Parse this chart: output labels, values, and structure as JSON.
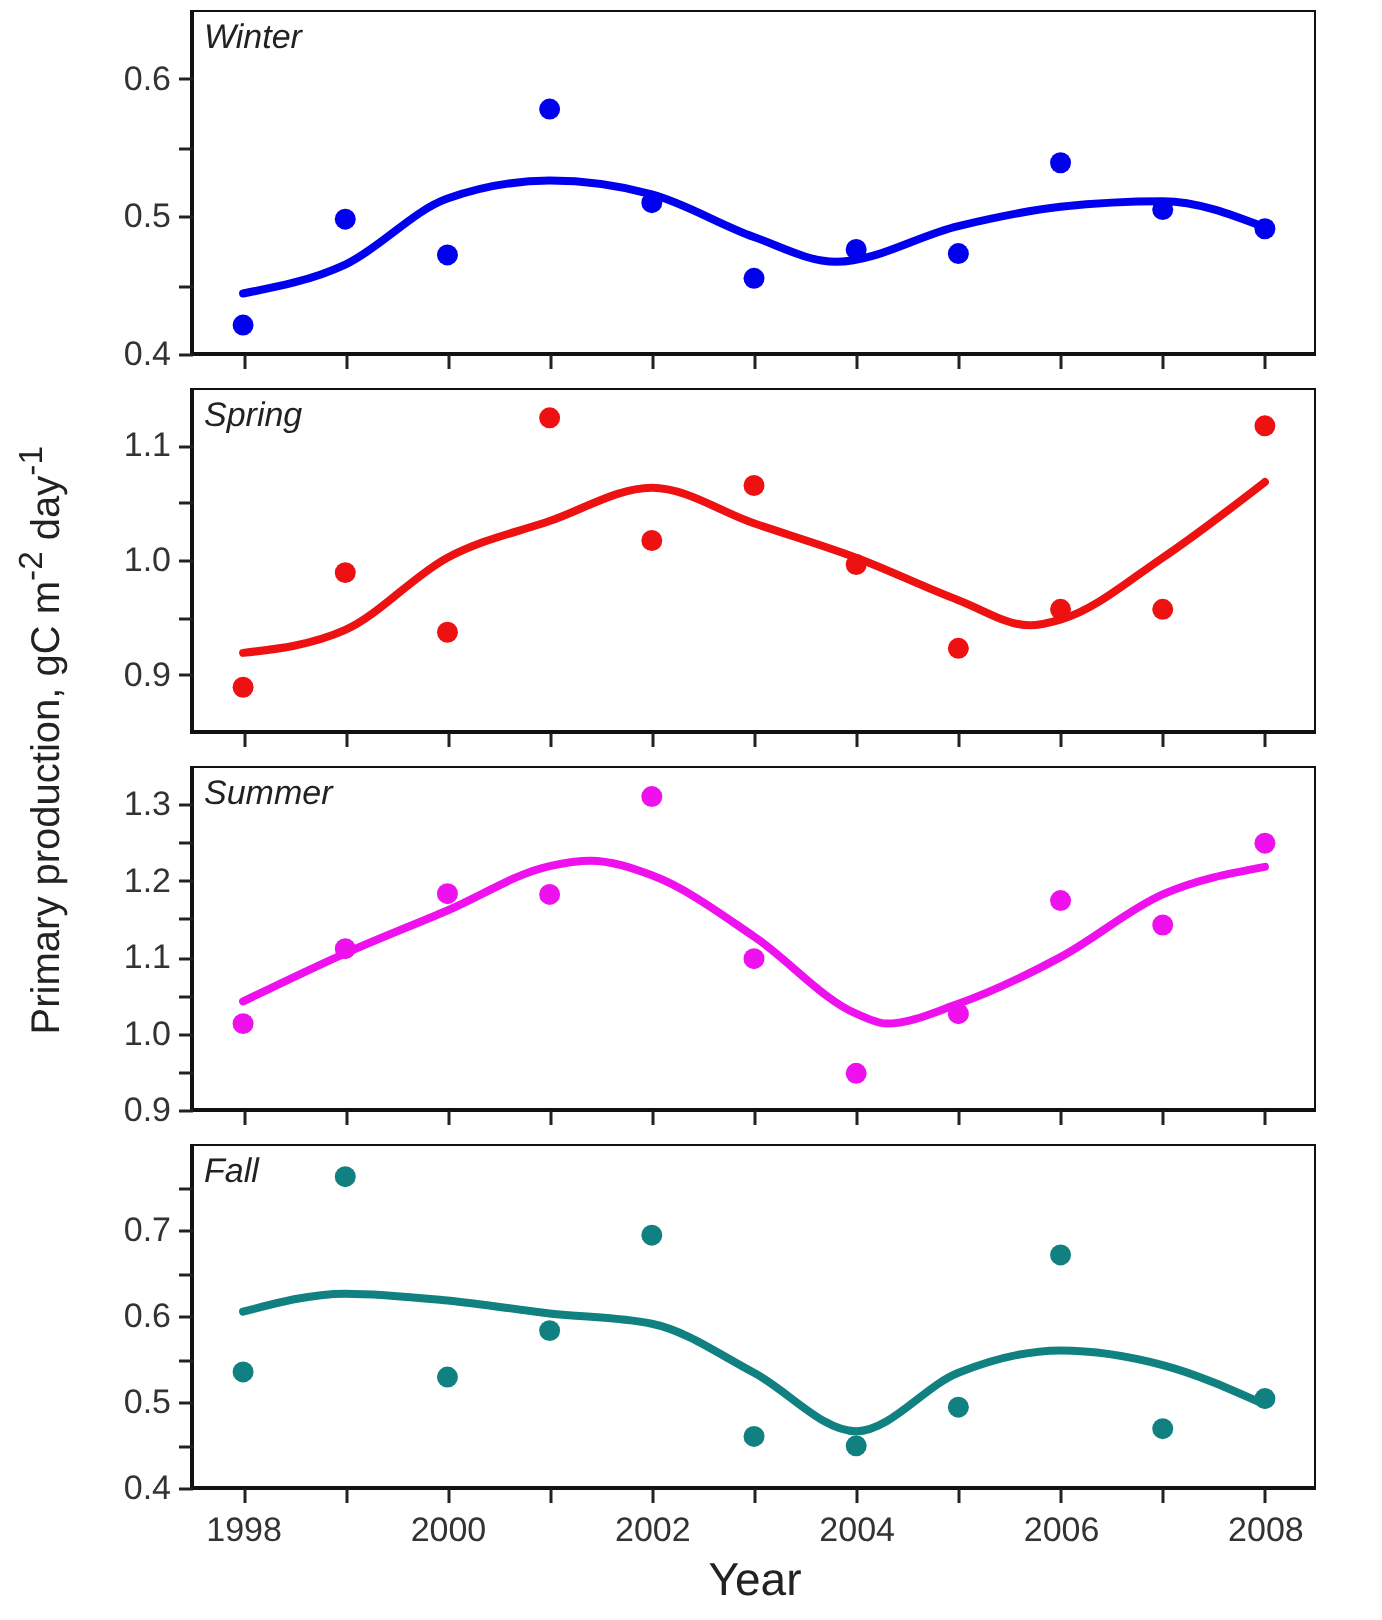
{
  "chart_data": [
    {
      "type": "scatter",
      "ylabel": "Primary production, gC m$^{-2}$ day$^{-1}$",
      "annotations": [
        "Winter"
      ],
      "tick_labels": "y",
      "xlim": [
        1997.5,
        2008.5
      ],
      "xticks": [
        1998,
        {
          "value": 1999,
          "label": null
        },
        2000,
        {
          "value": 2001,
          "label": null
        },
        2002,
        {
          "value": 2003,
          "label": null
        },
        2004,
        {
          "value": 2005,
          "label": null
        },
        2006,
        {
          "value": 2007,
          "label": null
        },
        2008
      ],
      "ylim": [
        0.4,
        0.65
      ],
      "yticks": [
        0.4,
        {
          "value": 0.45,
          "label": null
        },
        0.5,
        {
          "value": 0.55,
          "label": null
        },
        0.6
      ],
      "x": [
        1998,
        1999,
        2000,
        2001,
        2002,
        2003,
        2004,
        2005,
        2006,
        2007,
        2008
      ],
      "series": [
        {
          "marker": "circle",
          "color": "#0000ee",
          "values": [
            0.421,
            0.498,
            0.472,
            0.578,
            0.51,
            0.455,
            0.476,
            0.473,
            0.539,
            0.505,
            0.491
          ]
        },
        {
          "type": "line",
          "color": "#0000ee",
          "x": [
            1998,
            1999,
            2000,
            2001,
            2002,
            2003,
            2003.8,
            2005,
            2006,
            2007,
            2008
          ],
          "values": [
            0.444,
            0.465,
            0.513,
            0.526,
            0.516,
            0.485,
            0.467,
            0.493,
            0.507,
            0.511,
            0.492
          ]
        }
      ]
    },
    {
      "type": "scatter",
      "annotations": [
        "Spring"
      ],
      "tick_labels": "y",
      "xlim": [
        1997.5,
        2008.5
      ],
      "xticks": [
        1998,
        {
          "value": 1999,
          "label": null
        },
        2000,
        {
          "value": 2001,
          "label": null
        },
        2002,
        {
          "value": 2003,
          "label": null
        },
        2004,
        {
          "value": 2005,
          "label": null
        },
        2006,
        {
          "value": 2007,
          "label": null
        },
        2008
      ],
      "ylim": [
        0.85,
        1.15
      ],
      "yticks": [
        0.9,
        {
          "value": 0.95,
          "label": null
        },
        {
          "value": 1.0,
          "label": "1.0"
        },
        {
          "value": 1.05,
          "label": null
        },
        1.1
      ],
      "x": [
        1998,
        1999,
        2000,
        2001,
        2002,
        2003,
        2004,
        2005,
        2006,
        2007,
        2008
      ],
      "series": [
        {
          "marker": "circle",
          "color": "#ee1111",
          "values": [
            0.889,
            0.989,
            0.937,
            1.124,
            1.017,
            1.065,
            0.996,
            0.923,
            0.957,
            0.957,
            1.117
          ]
        },
        {
          "type": "line",
          "color": "#ee1111",
          "x": [
            1998,
            1999,
            2000,
            2001,
            2002,
            2003,
            2004,
            2005,
            2005.7,
            2006,
            2007,
            2008
          ],
          "values": [
            0.919,
            0.939,
            1.002,
            1.034,
            1.063,
            1.032,
            1.002,
            0.965,
            0.943,
            0.948,
            1.002,
            1.068
          ]
        }
      ]
    },
    {
      "type": "scatter",
      "annotations": [
        "Summer"
      ],
      "tick_labels": "y",
      "xlim": [
        1997.5,
        2008.5
      ],
      "xticks": [
        1998,
        {
          "value": 1999,
          "label": null
        },
        2000,
        {
          "value": 2001,
          "label": null
        },
        2002,
        {
          "value": 2003,
          "label": null
        },
        2004,
        {
          "value": 2005,
          "label": null
        },
        2006,
        {
          "value": 2007,
          "label": null
        },
        2008
      ],
      "ylim": [
        0.9,
        1.35
      ],
      "yticks": [
        0.9,
        {
          "value": 0.95,
          "label": null
        },
        {
          "value": 1.0,
          "label": "1.0"
        },
        {
          "value": 1.05,
          "label": null
        },
        1.1,
        {
          "value": 1.15,
          "label": null
        },
        1.2,
        {
          "value": 1.25,
          "label": null
        },
        1.3
      ],
      "x": [
        1998,
        1999,
        2000,
        2001,
        2002,
        2003,
        2004,
        2005,
        2006,
        2007,
        2008
      ],
      "series": [
        {
          "marker": "circle",
          "color": "#ee11ee",
          "values": [
            1.013,
            1.111,
            1.183,
            1.182,
            1.31,
            1.098,
            0.948,
            1.026,
            1.174,
            1.142,
            1.249
          ]
        },
        {
          "type": "line",
          "color": "#ee11ee",
          "x": [
            1998,
            1999,
            2000,
            2001,
            2001.4,
            2002,
            2003,
            2004,
            2004.3,
            2005,
            2006,
            2007,
            2008
          ],
          "values": [
            1.042,
            1.105,
            1.161,
            1.219,
            1.226,
            1.207,
            1.127,
            1.026,
            1.013,
            1.039,
            1.1,
            1.182,
            1.218
          ]
        }
      ]
    },
    {
      "type": "scatter",
      "annotations": [
        "Fall"
      ],
      "xlabel": "Year",
      "xlim": [
        1997.5,
        2008.5
      ],
      "xticks": [
        1998,
        {
          "value": 1999,
          "label": null
        },
        2000,
        {
          "value": 2001,
          "label": null
        },
        2002,
        {
          "value": 2003,
          "label": null
        },
        2004,
        {
          "value": 2005,
          "label": null
        },
        2006,
        {
          "value": 2007,
          "label": null
        },
        2008
      ],
      "ylim": [
        0.4,
        0.8
      ],
      "yticks": [
        0.4,
        {
          "value": 0.45,
          "label": null
        },
        0.5,
        {
          "value": 0.55,
          "label": null
        },
        0.6,
        {
          "value": 0.65,
          "label": null
        },
        0.7,
        {
          "value": 0.75,
          "label": null
        }
      ],
      "x": [
        1998,
        1999,
        2000,
        2001,
        2002,
        2003,
        2004,
        2005,
        2006,
        2007,
        2008
      ],
      "series": [
        {
          "marker": "circle",
          "color": "#118080",
          "values": [
            0.535,
            0.762,
            0.529,
            0.583,
            0.694,
            0.46,
            0.449,
            0.494,
            0.671,
            0.469,
            0.504
          ]
        },
        {
          "type": "line",
          "color": "#118080",
          "x": [
            1998,
            1999,
            2000,
            2001,
            2002,
            2003,
            2004,
            2005,
            2006,
            2007,
            2008
          ],
          "values": [
            0.605,
            0.626,
            0.618,
            0.603,
            0.591,
            0.534,
            0.466,
            0.534,
            0.56,
            0.543,
            0.497
          ]
        }
      ]
    }
  ]
}
